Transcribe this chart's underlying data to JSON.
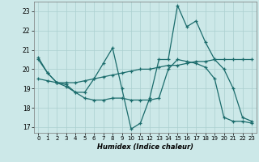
{
  "title": "",
  "xlabel": "Humidex (Indice chaleur)",
  "ylabel": "",
  "bg_color": "#cce8e8",
  "line_color": "#1a6b6b",
  "grid_color": "#aacfcf",
  "xlim": [
    -0.5,
    23.5
  ],
  "ylim": [
    16.7,
    23.5
  ],
  "yticks": [
    17,
    18,
    19,
    20,
    21,
    22,
    23
  ],
  "xticks": [
    0,
    1,
    2,
    3,
    4,
    5,
    6,
    7,
    8,
    9,
    10,
    11,
    12,
    13,
    14,
    15,
    16,
    17,
    18,
    19,
    20,
    21,
    22,
    23
  ],
  "line1_x": [
    0,
    1,
    2,
    3,
    4,
    5,
    6,
    7,
    8,
    9,
    10,
    11,
    12,
    13,
    14,
    15,
    16,
    17,
    18,
    19,
    20,
    21,
    22,
    23
  ],
  "line1_y": [
    20.6,
    19.8,
    19.3,
    19.2,
    18.8,
    18.8,
    19.5,
    20.3,
    21.1,
    19.0,
    16.9,
    17.2,
    18.5,
    20.5,
    20.5,
    23.3,
    22.2,
    22.5,
    21.4,
    20.5,
    20.0,
    19.0,
    17.5,
    17.3
  ],
  "line2_x": [
    0,
    1,
    2,
    3,
    4,
    5,
    6,
    7,
    8,
    9,
    10,
    11,
    12,
    13,
    14,
    15,
    16,
    17,
    18,
    19,
    20,
    21,
    22,
    23
  ],
  "line2_y": [
    19.5,
    19.4,
    19.3,
    19.3,
    19.3,
    19.4,
    19.5,
    19.6,
    19.7,
    19.8,
    19.9,
    20.0,
    20.0,
    20.1,
    20.2,
    20.2,
    20.3,
    20.4,
    20.4,
    20.5,
    20.5,
    20.5,
    20.5,
    20.5
  ],
  "line3_x": [
    0,
    1,
    2,
    3,
    4,
    5,
    6,
    7,
    8,
    9,
    10,
    11,
    12,
    13,
    14,
    15,
    16,
    17,
    18,
    19,
    20,
    21,
    22,
    23
  ],
  "line3_y": [
    20.5,
    19.8,
    19.3,
    19.1,
    18.8,
    18.5,
    18.4,
    18.4,
    18.5,
    18.5,
    18.4,
    18.4,
    18.4,
    18.5,
    20.0,
    20.5,
    20.4,
    20.3,
    20.1,
    19.5,
    17.5,
    17.3,
    17.3,
    17.2
  ]
}
